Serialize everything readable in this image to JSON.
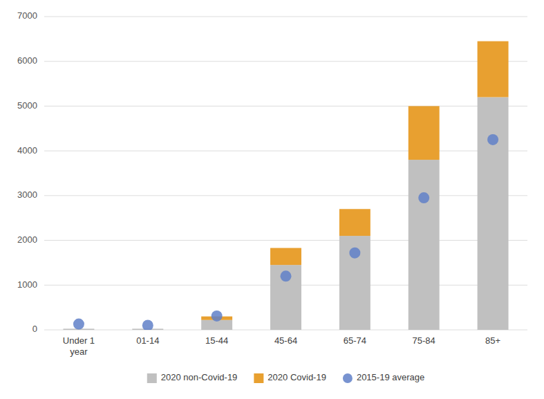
{
  "chart_data": {
    "type": "bar",
    "stacked": true,
    "categories": [
      "Under 1\nyear",
      "01-14",
      "15-44",
      "45-64",
      "65-74",
      "75-84",
      "85+"
    ],
    "series": [
      {
        "name": "2020 non-Covid-19",
        "color": "#c0c0c0",
        "values": [
          25,
          25,
          220,
          1450,
          2100,
          3800,
          5200
        ]
      },
      {
        "name": "2020 Covid-19",
        "color": "#e8a030",
        "values": [
          0,
          0,
          80,
          380,
          600,
          1200,
          1250
        ]
      },
      {
        "name": "2015-19 average",
        "color": "#6080c8",
        "type": "scatter",
        "marker": "circle",
        "values": [
          130,
          100,
          310,
          1200,
          1720,
          2950,
          4250
        ]
      }
    ],
    "ylim": [
      0,
      7000
    ],
    "yticks": [
      0,
      1000,
      2000,
      3000,
      4000,
      5000,
      6000,
      7000
    ],
    "grid": true,
    "legend": "bottom"
  }
}
